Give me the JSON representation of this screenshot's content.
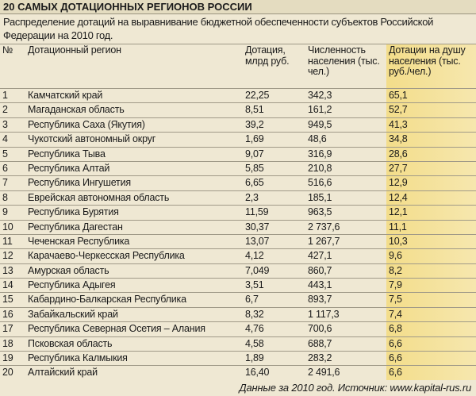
{
  "header": {
    "title": "20 САМЫХ ДОТАЦИОННЫХ РЕГИОНОВ РОССИИ",
    "subtitle": "Распределение дотаций на выравнивание бюджетной обеспеченности субъектов Российской Федерации на 2010 год."
  },
  "table": {
    "columns": [
      "№",
      "Дотационный регион",
      "Дотация, млрд руб.",
      "Численность населения (тыс. чел.)",
      "Дотации на душу населения (тыс. руб./чел.)"
    ],
    "rows": [
      [
        "1",
        "Камчатский край",
        "22,25",
        "342,3",
        "65,1"
      ],
      [
        "2",
        "Магаданская область",
        "8,51",
        "161,2",
        "52,7"
      ],
      [
        "3",
        "Республика Саха (Якутия)",
        "39,2",
        "949,5",
        "41,3"
      ],
      [
        "4",
        "Чукотский автономный округ",
        "1,69",
        "48,6",
        "34,8"
      ],
      [
        "5",
        "Республика Тыва",
        "9,07",
        "316,9",
        "28,6"
      ],
      [
        "6",
        "Республика Алтай",
        "5,85",
        "210,8",
        "27,7"
      ],
      [
        "7",
        "Республика Ингушетия",
        "6,65",
        "516,6",
        "12,9"
      ],
      [
        "8",
        "Еврейская автономная область",
        "2,3",
        "185,1",
        "12,4"
      ],
      [
        "9",
        "Республика Бурятия",
        "11,59",
        "963,5",
        "12,1"
      ],
      [
        "10",
        "Республика Дагестан",
        "30,37",
        "2 737,6",
        "11,1"
      ],
      [
        "11",
        "Чеченская Республика",
        "13,07",
        "1 267,7",
        "10,3"
      ],
      [
        "12",
        "Карачаево-Черкесская Республика",
        "4,12",
        "427,1",
        "9,6"
      ],
      [
        "13",
        "Амурская область",
        "7,049",
        "860,7",
        "8,2"
      ],
      [
        "14",
        "Республика Адыгея",
        "3,51",
        "443,1",
        "7,9"
      ],
      [
        "15",
        "Кабардино-Балкарская Республика",
        "6,7",
        "893,7",
        "7,5"
      ],
      [
        "16",
        "Забайкальский край",
        "8,32",
        "1 117,3",
        "7,4"
      ],
      [
        "17",
        "Республика Северная Осетия – Алания",
        "4,76",
        "700,6",
        "6,8"
      ],
      [
        "18",
        "Псковская область",
        "4,58",
        "688,7",
        "6,6"
      ],
      [
        "19",
        "Республика Калмыкия",
        "1,89",
        "283,2",
        "6,6"
      ],
      [
        "20",
        "Алтайский край",
        "16,40",
        "2 491,6",
        "6,6"
      ]
    ]
  },
  "footer": "Данные за 2010 год. Источник: www.kapital-rus.ru"
}
